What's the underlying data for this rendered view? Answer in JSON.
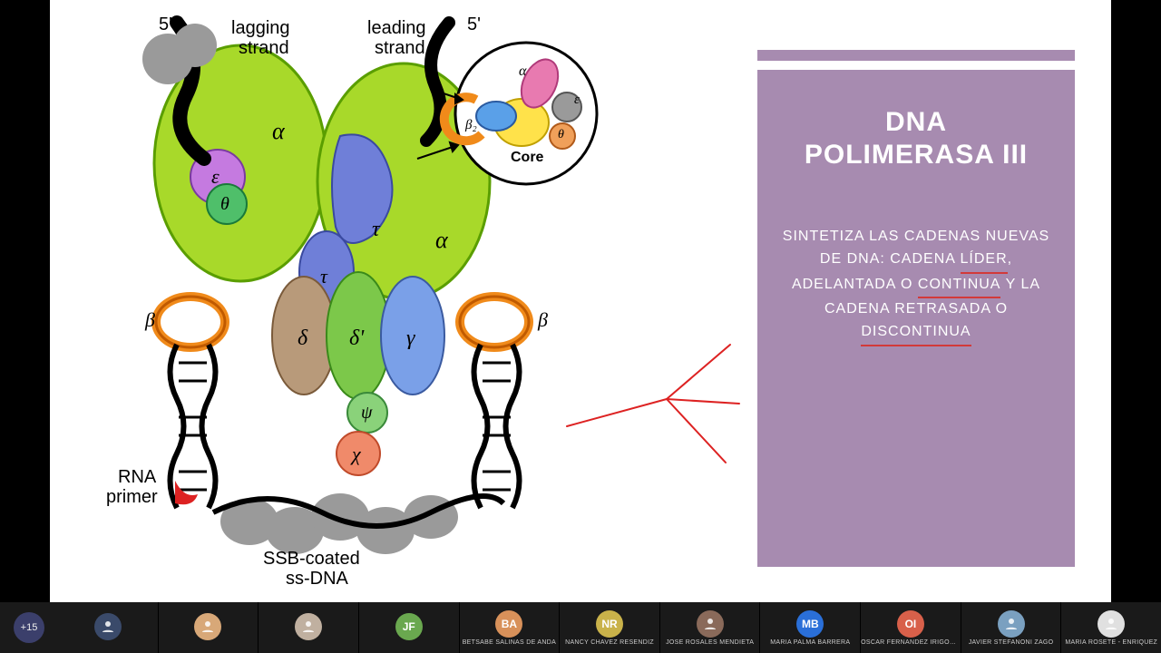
{
  "panel": {
    "title_l1": "DNA",
    "title_l2": "POLIMERASA III",
    "body_pre": "SINTETIZA LAS CADENAS NUEVAS DE DNA: CADENA ",
    "u1": "LÍDER",
    "mid1": ", ADELANTADA O ",
    "u2": "CONTINUA",
    "mid2": " Y LA CADENA RETRASADA O ",
    "u3": "DISCONTINUA",
    "bg": "#a78bb0",
    "underline": "#d23a3a"
  },
  "diagram": {
    "labels": {
      "five_left": "5'",
      "five_right": "5'",
      "lagging": "lagging",
      "strand1": "strand",
      "leading": "leading",
      "strand2": "strand",
      "rna": "RNA",
      "primer": "primer",
      "ssb1": "SSB-coated",
      "ssb2": "ss-DNA",
      "core": "Core",
      "beta_l": "β",
      "beta_r": "β",
      "alpha1": "α",
      "alpha2": "α",
      "eps": "ε",
      "theta": "θ",
      "tau1": "τ",
      "tau2": "τ",
      "delta": "δ",
      "deltap": "δ'",
      "gamma": "γ",
      "psi": "ψ",
      "chi": "χ",
      "inset_alpha": "α",
      "inset_beta2": "β₂",
      "inset_eps": "ε",
      "inset_theta": "θ"
    },
    "colors": {
      "alpha": "#a8d92a",
      "alpha_stroke": "#5a9e00",
      "tau": "#6f7fd8",
      "gamma": "#7aa0e8",
      "delta": "#b89a7a",
      "deltap": "#7cc84a",
      "psi": "#8ad27a",
      "chi": "#f08a6a",
      "eps": "#c57ae0",
      "theta": "#4fbf6a",
      "beta": "#f08a1a",
      "dna": "#000000",
      "ssb": "#9a9a9a",
      "rna_primer": "#d22",
      "inset_yellow": "#ffe24a",
      "inset_blue": "#5aa0e8",
      "inset_pink": "#e87ab0",
      "inset_grey": "#9a9a9a",
      "inset_orange": "#f0a05a"
    }
  },
  "participants": {
    "more": "+15",
    "list": [
      {
        "initials": "",
        "name": "",
        "bg": "#3a4a6a",
        "img": true
      },
      {
        "initials": "",
        "name": "",
        "bg": "#d8a878",
        "img": true
      },
      {
        "initials": "",
        "name": "",
        "bg": "#c0b0a0",
        "img": true
      },
      {
        "initials": "JF",
        "name": "",
        "bg": "#6aa84f",
        "img": false
      },
      {
        "initials": "BA",
        "name": "BETSABE SALINAS DE ANDA",
        "bg": "#d8915a",
        "img": false
      },
      {
        "initials": "NR",
        "name": "NANCY CHAVEZ RESENDIZ",
        "bg": "#c9b24a",
        "img": false
      },
      {
        "initials": "",
        "name": "JOSE ROSALES MENDIETA",
        "bg": "#8a6a5a",
        "img": true
      },
      {
        "initials": "MB",
        "name": "MARIA PALMA BARRERA",
        "bg": "#2a6fd8",
        "img": false
      },
      {
        "initials": "OI",
        "name": "OSCAR FERNANDEZ IRIGOYEN",
        "bg": "#d8604a",
        "img": false
      },
      {
        "initials": "",
        "name": "JAVIER STEFANONI ZAGO",
        "bg": "#7aa0c0",
        "img": true
      },
      {
        "initials": "",
        "name": "MARIA ROSETE - ENRIQUEZ",
        "bg": "#e0e0e0",
        "img": true
      }
    ]
  }
}
